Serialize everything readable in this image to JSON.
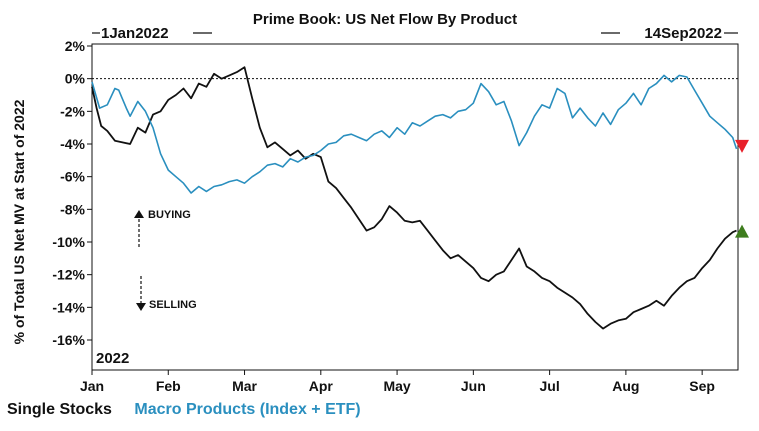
{
  "chart_data": {
    "type": "line",
    "title": "Prime Book: US Net Flow By Product",
    "ylabel": "% of Total US Net MV at Start of 2022",
    "start_label": "1Jan2022",
    "end_label": "14Sep2022",
    "year_label": "2022",
    "annotations": {
      "buying": "BUYING",
      "selling": "SELLING"
    },
    "ylim": [
      -17,
      2
    ],
    "yticks": [
      2,
      0,
      -2,
      -4,
      -6,
      -8,
      -10,
      -12,
      -14,
      -16
    ],
    "ytick_labels": [
      "2%",
      "0%",
      "-2%",
      "-4%",
      "-6%",
      "-8%",
      "-10%",
      "-12%",
      "-14%",
      "-16%"
    ],
    "xlim": [
      0,
      8.47
    ],
    "xtick_labels": [
      "Jan",
      "Feb",
      "Mar",
      "Apr",
      "May",
      "Jun",
      "Jul",
      "Aug",
      "Sep"
    ],
    "zero_line": true,
    "grid": false,
    "legend_position": "bottom-left",
    "series": [
      {
        "name": "Single Stocks",
        "color": "#111111",
        "x": [
          0.0,
          0.06,
          0.12,
          0.2,
          0.3,
          0.4,
          0.5,
          0.6,
          0.7,
          0.8,
          0.9,
          1.0,
          1.1,
          1.2,
          1.3,
          1.4,
          1.5,
          1.6,
          1.7,
          1.8,
          1.9,
          2.0,
          2.1,
          2.2,
          2.3,
          2.4,
          2.5,
          2.6,
          2.7,
          2.8,
          2.9,
          3.0,
          3.1,
          3.2,
          3.3,
          3.4,
          3.5,
          3.6,
          3.7,
          3.8,
          3.9,
          4.0,
          4.1,
          4.2,
          4.3,
          4.4,
          4.5,
          4.6,
          4.7,
          4.8,
          4.9,
          5.0,
          5.1,
          5.2,
          5.3,
          5.4,
          5.5,
          5.6,
          5.7,
          5.8,
          5.9,
          6.0,
          6.1,
          6.2,
          6.3,
          6.4,
          6.5,
          6.6,
          6.7,
          6.8,
          6.9,
          7.0,
          7.1,
          7.2,
          7.3,
          7.4,
          7.5,
          7.6,
          7.7,
          7.8,
          7.9,
          8.0,
          8.1,
          8.2,
          8.3,
          8.4,
          8.45
        ],
        "y": [
          -0.5,
          -1.8,
          -2.9,
          -3.2,
          -3.8,
          -3.9,
          -4.0,
          -3.0,
          -3.3,
          -2.2,
          -2.0,
          -1.3,
          -1.0,
          -0.6,
          -1.2,
          -0.3,
          -0.5,
          0.3,
          0.0,
          0.2,
          0.4,
          0.7,
          -1.2,
          -3.0,
          -4.2,
          -3.9,
          -4.3,
          -4.7,
          -4.4,
          -4.9,
          -4.6,
          -4.8,
          -6.3,
          -6.7,
          -7.3,
          -7.9,
          -8.6,
          -9.3,
          -9.1,
          -8.6,
          -7.8,
          -8.2,
          -8.7,
          -8.8,
          -8.7,
          -9.3,
          -9.9,
          -10.5,
          -11.0,
          -10.8,
          -11.2,
          -11.6,
          -12.2,
          -12.4,
          -12.0,
          -11.8,
          -11.1,
          -10.4,
          -11.5,
          -11.8,
          -12.2,
          -12.4,
          -12.8,
          -13.1,
          -13.4,
          -13.8,
          -14.4,
          -14.9,
          -15.3,
          -15.0,
          -14.8,
          -14.7,
          -14.3,
          -14.1,
          -13.9,
          -13.6,
          -13.9,
          -13.3,
          -12.8,
          -12.4,
          -12.2,
          -11.6,
          -11.1,
          -10.4,
          -9.8,
          -9.4,
          -9.3
        ]
      },
      {
        "name": "Macro Products (Index + ETF)",
        "color": "#2a8fbf",
        "x": [
          0.0,
          0.05,
          0.1,
          0.2,
          0.3,
          0.35,
          0.45,
          0.5,
          0.6,
          0.7,
          0.8,
          0.9,
          1.0,
          1.1,
          1.2,
          1.3,
          1.4,
          1.5,
          1.6,
          1.7,
          1.8,
          1.9,
          2.0,
          2.1,
          2.2,
          2.3,
          2.4,
          2.5,
          2.6,
          2.7,
          2.8,
          2.9,
          3.0,
          3.1,
          3.2,
          3.3,
          3.4,
          3.5,
          3.6,
          3.7,
          3.8,
          3.9,
          4.0,
          4.1,
          4.2,
          4.3,
          4.4,
          4.5,
          4.6,
          4.7,
          4.8,
          4.9,
          5.0,
          5.1,
          5.2,
          5.3,
          5.4,
          5.5,
          5.6,
          5.7,
          5.8,
          5.9,
          6.0,
          6.1,
          6.2,
          6.3,
          6.4,
          6.5,
          6.6,
          6.7,
          6.8,
          6.9,
          7.0,
          7.1,
          7.2,
          7.3,
          7.4,
          7.5,
          7.6,
          7.7,
          7.8,
          7.9,
          8.0,
          8.1,
          8.2,
          8.3,
          8.4,
          8.45
        ],
        "y": [
          -0.2,
          -1.0,
          -1.8,
          -1.6,
          -0.6,
          -0.7,
          -1.8,
          -2.3,
          -1.4,
          -2.0,
          -3.0,
          -4.6,
          -5.6,
          -6.0,
          -6.4,
          -7.0,
          -6.6,
          -6.9,
          -6.6,
          -6.5,
          -6.3,
          -6.2,
          -6.4,
          -6.0,
          -5.7,
          -5.3,
          -5.2,
          -5.4,
          -4.9,
          -5.1,
          -4.8,
          -4.7,
          -4.4,
          -4.0,
          -3.9,
          -3.5,
          -3.4,
          -3.6,
          -3.8,
          -3.4,
          -3.2,
          -3.6,
          -3.0,
          -3.4,
          -2.7,
          -2.9,
          -2.6,
          -2.3,
          -2.2,
          -2.4,
          -2.0,
          -1.9,
          -1.5,
          -0.3,
          -0.8,
          -1.6,
          -1.4,
          -2.6,
          -4.1,
          -3.3,
          -2.3,
          -1.6,
          -1.8,
          -0.6,
          -0.9,
          -2.4,
          -1.8,
          -2.4,
          -2.9,
          -2.1,
          -2.8,
          -1.9,
          -1.5,
          -0.9,
          -1.6,
          -0.6,
          -0.3,
          0.2,
          -0.2,
          0.2,
          0.1,
          -0.7,
          -1.5,
          -2.3,
          -2.7,
          -3.1,
          -3.6,
          -4.3
        ]
      }
    ],
    "markers": [
      {
        "type": "down-arrow",
        "color": "#e8202a",
        "series": "Macro Products (Index + ETF)"
      },
      {
        "type": "up-arrow",
        "color": "#3e7d1e",
        "series": "Single Stocks"
      }
    ]
  }
}
